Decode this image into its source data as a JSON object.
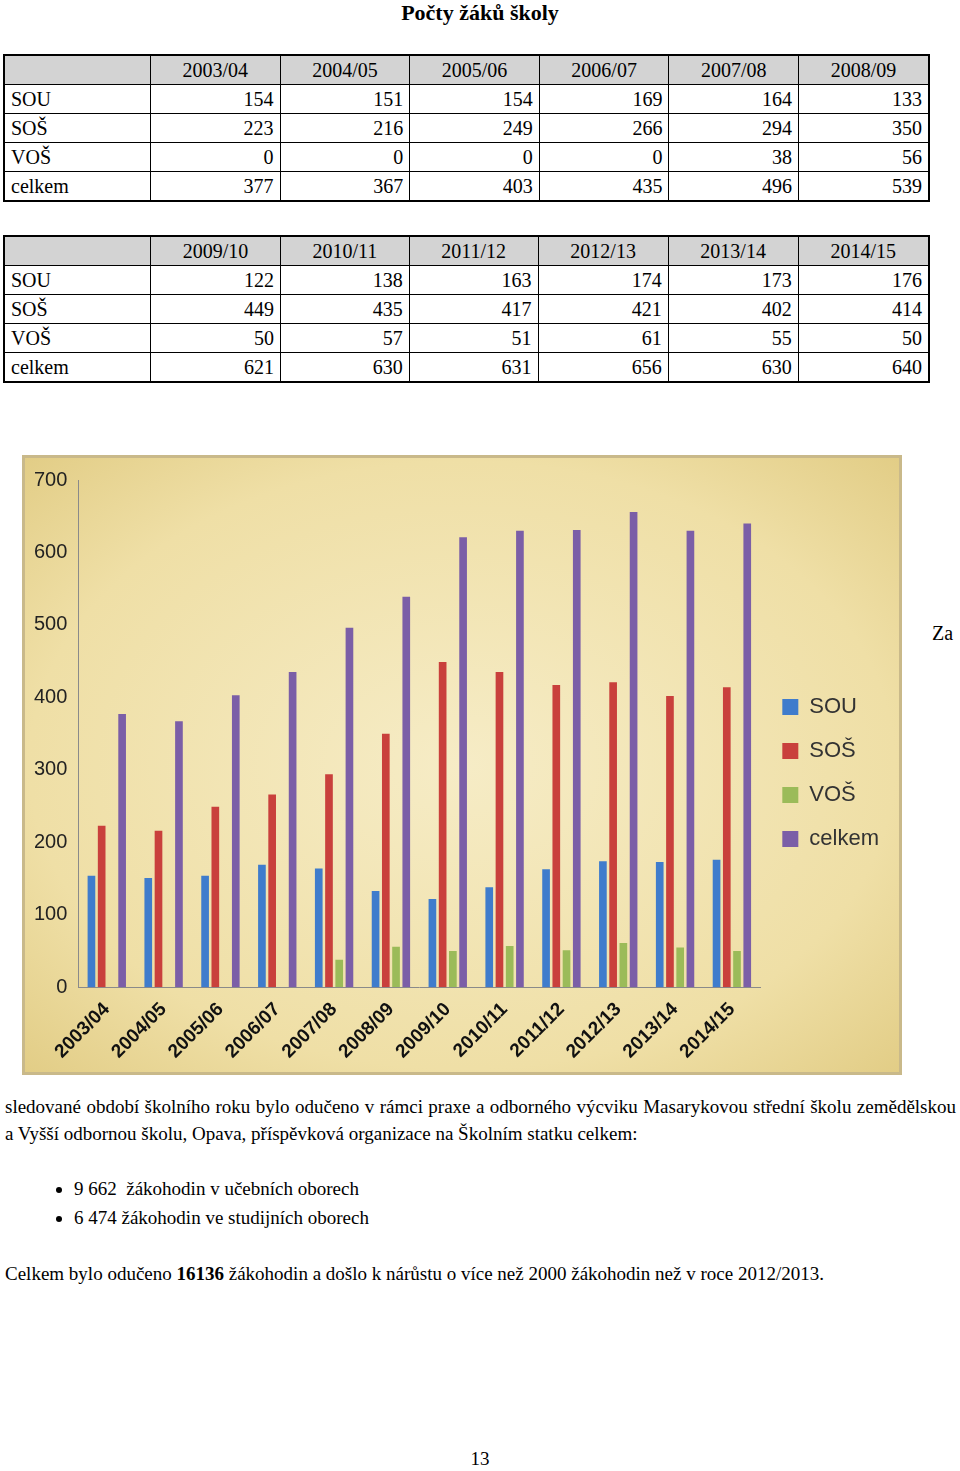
{
  "title": "Počty žáků školy",
  "tables": [
    {
      "columns": [
        "2003/04",
        "2004/05",
        "2005/06",
        "2006/07",
        "2007/08",
        "2008/09"
      ],
      "rows": [
        {
          "label": "SOU",
          "values": [
            154,
            151,
            154,
            169,
            164,
            133
          ]
        },
        {
          "label": "SOŠ",
          "values": [
            223,
            216,
            249,
            266,
            294,
            350
          ]
        },
        {
          "label": "VOŠ",
          "values": [
            0,
            0,
            0,
            0,
            38,
            56
          ]
        },
        {
          "label": "celkem",
          "values": [
            377,
            367,
            403,
            435,
            496,
            539
          ]
        }
      ]
    },
    {
      "columns": [
        "2009/10",
        "2010/11",
        "2011/12",
        "2012/13",
        "2013/14",
        "2014/15"
      ],
      "rows": [
        {
          "label": "SOU",
          "values": [
            122,
            138,
            163,
            174,
            173,
            176
          ]
        },
        {
          "label": "SOŠ",
          "values": [
            449,
            435,
            417,
            421,
            402,
            414
          ]
        },
        {
          "label": "VOŠ",
          "values": [
            50,
            57,
            51,
            61,
            55,
            50
          ]
        },
        {
          "label": "celkem",
          "values": [
            621,
            630,
            631,
            656,
            630,
            640
          ]
        }
      ]
    }
  ],
  "chart_data": {
    "type": "bar",
    "categories": [
      "2003/04",
      "2004/05",
      "2005/06",
      "2006/07",
      "2007/08",
      "2008/09",
      "2009/10",
      "2010/11",
      "2011/12",
      "2012/13",
      "2013/14",
      "2014/15"
    ],
    "series": [
      {
        "name": "SOU",
        "color": "#3f7ccc",
        "values": [
          154,
          151,
          154,
          169,
          164,
          133,
          122,
          138,
          163,
          174,
          173,
          176
        ]
      },
      {
        "name": "SOŠ",
        "color": "#c9403c",
        "values": [
          223,
          216,
          249,
          266,
          294,
          350,
          449,
          435,
          417,
          421,
          402,
          414
        ]
      },
      {
        "name": "VOŠ",
        "color": "#9bbb59",
        "values": [
          0,
          0,
          0,
          0,
          38,
          56,
          50,
          57,
          51,
          61,
          55,
          50
        ]
      },
      {
        "name": "celkem",
        "color": "#7b5ea7",
        "values": [
          377,
          367,
          403,
          435,
          496,
          539,
          621,
          630,
          631,
          656,
          630,
          640
        ]
      }
    ],
    "ylim": [
      0,
      700
    ],
    "yticks": [
      0,
      100,
      200,
      300,
      400,
      500,
      600,
      700
    ],
    "grid": false,
    "legend": "right"
  },
  "text": {
    "lead": "Za",
    "paragraph": "sledované období školního roku bylo odučeno v rámci praxe a odborného výcviku Masarykovou střední školu zemědělskou a Vyšší odbornou školu, Opava, příspěvková organizace na Školním statku celkem:",
    "bullets": [
      "9 662  žákohodin v učebních oborech",
      "6 474 žákohodin ve studijních oborech"
    ],
    "final": [
      {
        "text": "Celkem bylo odučeno ",
        "bold": false
      },
      {
        "text": "16136",
        "bold": true
      },
      {
        "text": " žákohodin a došlo k nárůstu o více než 2000 žákohodin než v roce 2012/2013.",
        "bold": false
      }
    ]
  },
  "page_number": "13"
}
